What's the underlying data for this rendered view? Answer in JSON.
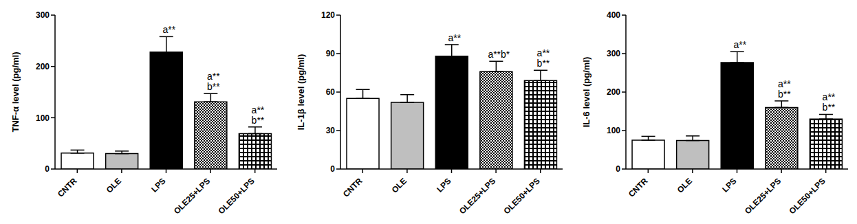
{
  "chart_data": [
    {
      "type": "bar",
      "y_label": "TNF-α level (pg/ml)",
      "categories": [
        "CNTR",
        "OLE",
        "LPS",
        "OLE25+LPS",
        "OLE50+LPS"
      ],
      "values": [
        31,
        30,
        228,
        131,
        69
      ],
      "errors": [
        6,
        5,
        30,
        16,
        13
      ],
      "annotations": [
        null,
        null,
        [
          "a**"
        ],
        [
          "a**",
          "b**"
        ],
        [
          "a**",
          "b**"
        ]
      ],
      "colors": [
        "#ffffff",
        "#bfbfbf",
        "#000000",
        "#000000",
        "#000000"
      ],
      "ylim": [
        0,
        300
      ],
      "yticks": [
        0,
        100,
        200,
        300
      ],
      "grid": false
    },
    {
      "type": "bar",
      "y_label": "IL-1β level (pg/ml)",
      "categories": [
        "CNTR",
        "OLE",
        "LPS",
        "OLE25+LPS",
        "OLE50+LPS"
      ],
      "values": [
        55,
        52,
        88,
        76,
        69
      ],
      "errors": [
        7,
        6,
        9,
        8,
        8
      ],
      "annotations": [
        null,
        null,
        [
          "a**"
        ],
        [
          "a**b*"
        ],
        [
          "a**",
          "b**"
        ]
      ],
      "colors": [
        "#ffffff",
        "#bfbfbf",
        "#000000",
        "#000000",
        "#000000"
      ],
      "ylim": [
        0,
        120
      ],
      "yticks": [
        0,
        30,
        60,
        90,
        120
      ],
      "grid": false
    },
    {
      "type": "bar",
      "y_label": "IL-6 level (pg/ml)",
      "categories": [
        "CNTR",
        "OLE",
        "LPS",
        "OLE25+LPS",
        "OLE50+LPS"
      ],
      "values": [
        75,
        74,
        277,
        160,
        130
      ],
      "errors": [
        10,
        12,
        28,
        17,
        12
      ],
      "annotations": [
        null,
        null,
        [
          "a**"
        ],
        [
          "a**",
          "b**"
        ],
        [
          "a**",
          "b**"
        ]
      ],
      "colors": [
        "#ffffff",
        "#bfbfbf",
        "#000000",
        "#000000",
        "#000000"
      ],
      "ylim": [
        0,
        400
      ],
      "yticks": [
        0,
        100,
        200,
        300,
        400
      ],
      "grid": false
    }
  ]
}
